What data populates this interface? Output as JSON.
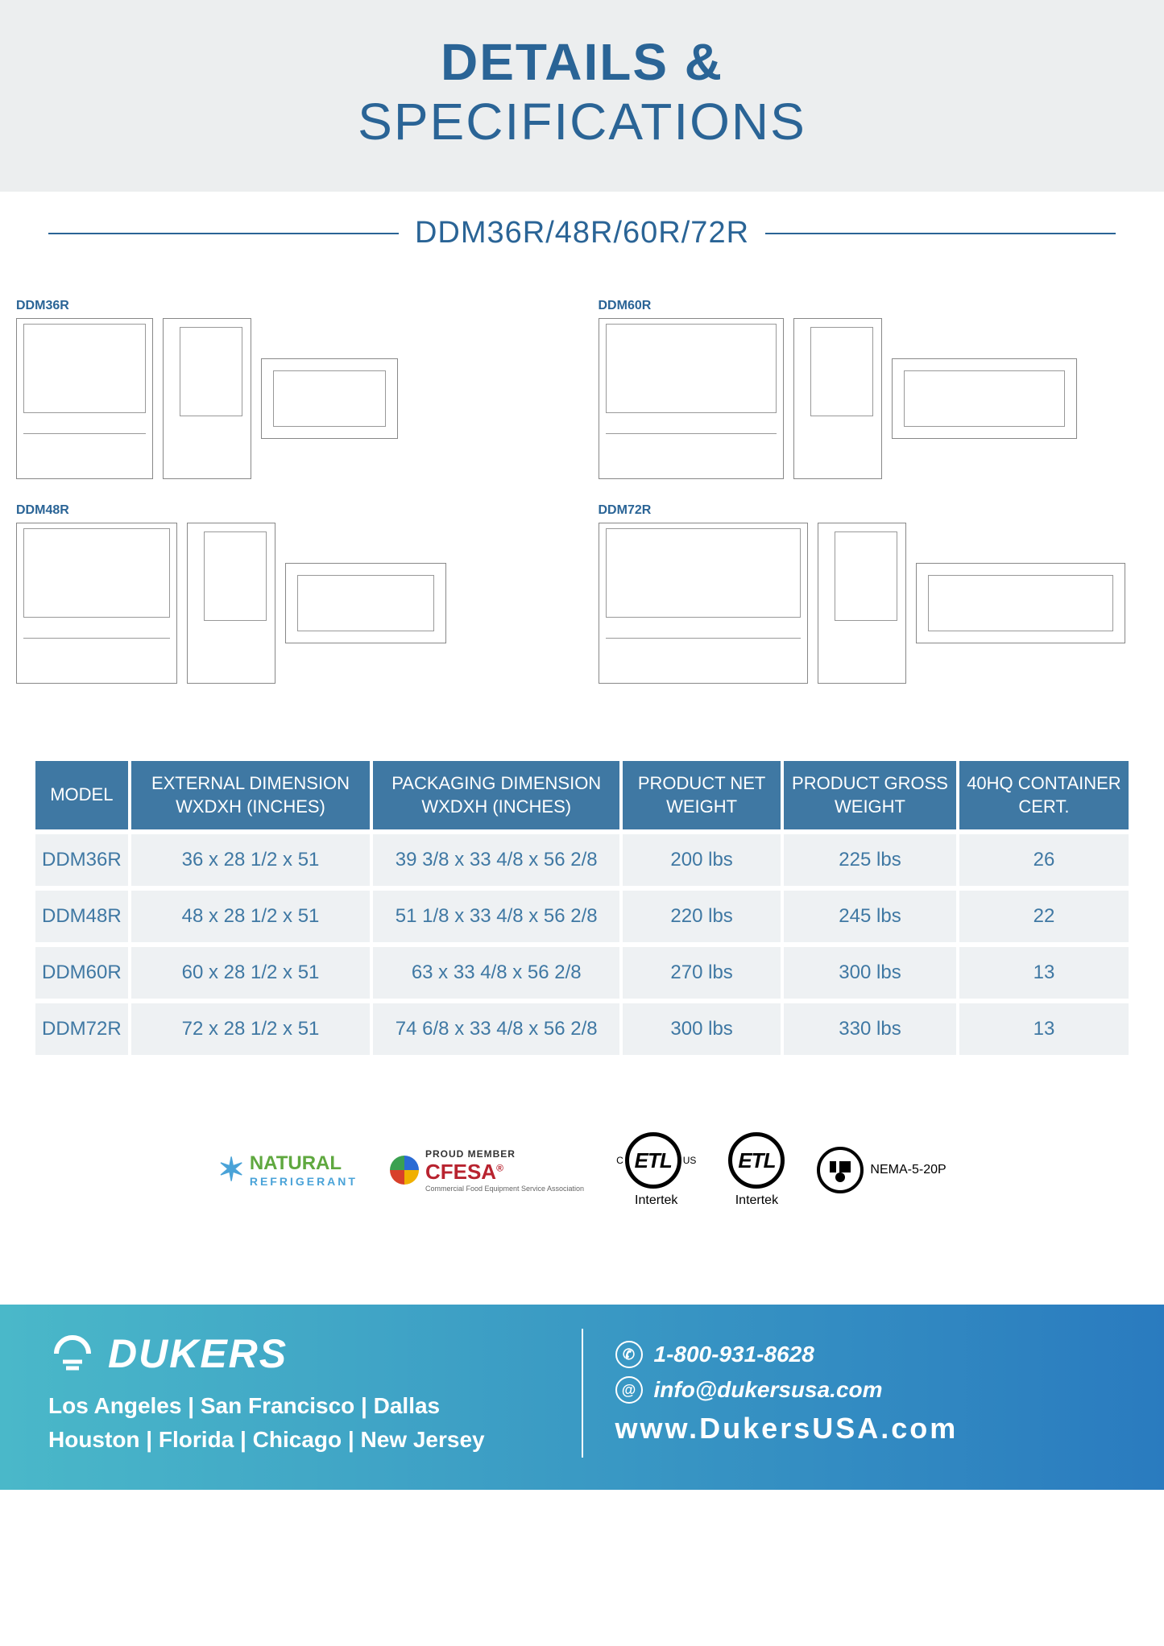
{
  "header": {
    "title_bold": "DETAILS &",
    "title_light": "SPECIFICATIONS",
    "title_color": "#2a6496",
    "band_bg": "#eceeef"
  },
  "subtitle": "DDM36R/48R/60R/72R",
  "diagrams": [
    {
      "label": "DDM36R",
      "size_class": ""
    },
    {
      "label": "DDM60R",
      "size_class": "w60"
    },
    {
      "label": "DDM48R",
      "size_class": "w48"
    },
    {
      "label": "DDM72R",
      "size_class": "w72"
    }
  ],
  "spec_table": {
    "header_bg": "#3f78a3",
    "header_color": "#ffffff",
    "row_bg": "#eef1f3",
    "row_color": "#3f78a3",
    "columns": [
      "MODEL",
      "EXTERNAL DIMENSION WXDXH (INCHES)",
      "PACKAGING DIMENSION WXDXH (INCHES)",
      "PRODUCT NET WEIGHT",
      "PRODUCT GROSS WEIGHT",
      "40HQ CONTAINER CERT."
    ],
    "rows": [
      [
        "DDM36R",
        "36 x 28 1/2 x 51",
        "39 3/8 x 33 4/8 x 56 2/8",
        "200 lbs",
        "225 lbs",
        "26"
      ],
      [
        "DDM48R",
        "48 x 28 1/2 x 51",
        "51 1/8 x 33 4/8 x 56 2/8",
        "220 lbs",
        "245 lbs",
        "22"
      ],
      [
        "DDM60R",
        "60 x 28 1/2 x 51",
        "63 x 33 4/8 x 56 2/8",
        "270 lbs",
        "300 lbs",
        "13"
      ],
      [
        "DDM72R",
        "72 x 28 1/2 x 51",
        "74 6/8 x 33 4/8 x 56 2/8",
        "300 lbs",
        "330 lbs",
        "13"
      ]
    ]
  },
  "certifications": {
    "natural": {
      "line1": "NATURAL",
      "line2": "REFRIGERANT",
      "color1": "#5fa83f",
      "color2": "#4aa3d8"
    },
    "cfesa": {
      "pre": "PROUD MEMBER",
      "name": "CFESA",
      "sub": "Commercial Food Equipment Service Association",
      "color": "#b8232f"
    },
    "etl1_label": "Intertek",
    "etl2_label": "Intertek",
    "nema": "NEMA-5-20P"
  },
  "footer": {
    "brand": "DUKERS",
    "locations_line1": "Los Angeles | San Francisco | Dallas",
    "locations_line2": "Houston | Florida | Chicago | New Jersey",
    "phone": "1-800-931-8628",
    "email": "info@dukersusa.com",
    "website": "www.DukersUSA.com",
    "gradient_from": "#4ab8c9",
    "gradient_to": "#2a7bbf"
  }
}
